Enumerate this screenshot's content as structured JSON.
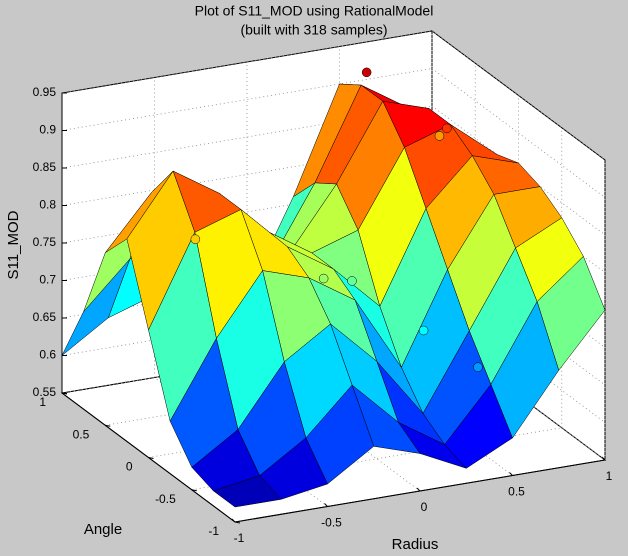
{
  "chart_data": {
    "type": "surface",
    "title": "Plot of S11_MOD using RationalModel",
    "subtitle": "(built with 318 samples)",
    "xlabel": "Radius",
    "ylabel": "Angle",
    "zlabel": "S11_MOD",
    "x": [
      -1,
      -0.75,
      -0.5,
      -0.25,
      0,
      0.25,
      0.5,
      0.75,
      1
    ],
    "y": [
      -1,
      -0.75,
      -0.5,
      -0.25,
      0,
      0.25,
      0.5,
      0.75,
      1
    ],
    "z": [
      [
        0.57,
        0.57,
        0.58,
        0.62,
        0.6,
        0.57,
        0.6,
        0.68,
        0.75
      ],
      [
        0.57,
        0.58,
        0.62,
        0.68,
        0.62,
        0.58,
        0.65,
        0.75,
        0.8
      ],
      [
        0.58,
        0.62,
        0.7,
        0.74,
        0.68,
        0.6,
        0.7,
        0.8,
        0.83
      ],
      [
        0.62,
        0.72,
        0.8,
        0.78,
        0.74,
        0.64,
        0.76,
        0.85,
        0.85
      ],
      [
        0.72,
        0.84,
        0.86,
        0.8,
        0.76,
        0.7,
        0.82,
        0.88,
        0.86
      ],
      [
        0.82,
        0.9,
        0.86,
        0.8,
        0.76,
        0.78,
        0.88,
        0.9,
        0.85
      ],
      [
        0.78,
        0.85,
        0.84,
        0.78,
        0.74,
        0.82,
        0.92,
        0.9,
        0.82
      ],
      [
        0.68,
        0.74,
        0.76,
        0.72,
        0.7,
        0.8,
        0.92,
        0.88,
        0.8
      ],
      [
        0.6,
        0.64,
        0.66,
        0.64,
        0.64,
        0.76,
        0.9,
        0.86,
        0.78
      ]
    ],
    "samples": {
      "x": [
        0.6,
        0.8,
        -0.1,
        0.1,
        0.3,
        0.5,
        -0.7,
        0.9
      ],
      "y": [
        0.9,
        0.4,
        -0.1,
        0.0,
        -0.4,
        -0.6,
        0.1,
        0.7
      ],
      "z": [
        0.92,
        0.88,
        0.76,
        0.74,
        0.7,
        0.66,
        0.82,
        0.84
      ]
    },
    "xlim": [
      -1,
      1
    ],
    "xticks": [
      -1,
      -0.5,
      0,
      0.5,
      1
    ],
    "ylim": [
      -1,
      1
    ],
    "yticks": [
      -1,
      -0.5,
      0,
      0.5,
      1
    ],
    "zlim": [
      0.55,
      0.95
    ],
    "zticks": [
      0.55,
      0.6,
      0.65,
      0.7,
      0.75,
      0.8,
      0.85,
      0.9,
      0.95
    ],
    "colormap": "jet",
    "grid": true
  }
}
